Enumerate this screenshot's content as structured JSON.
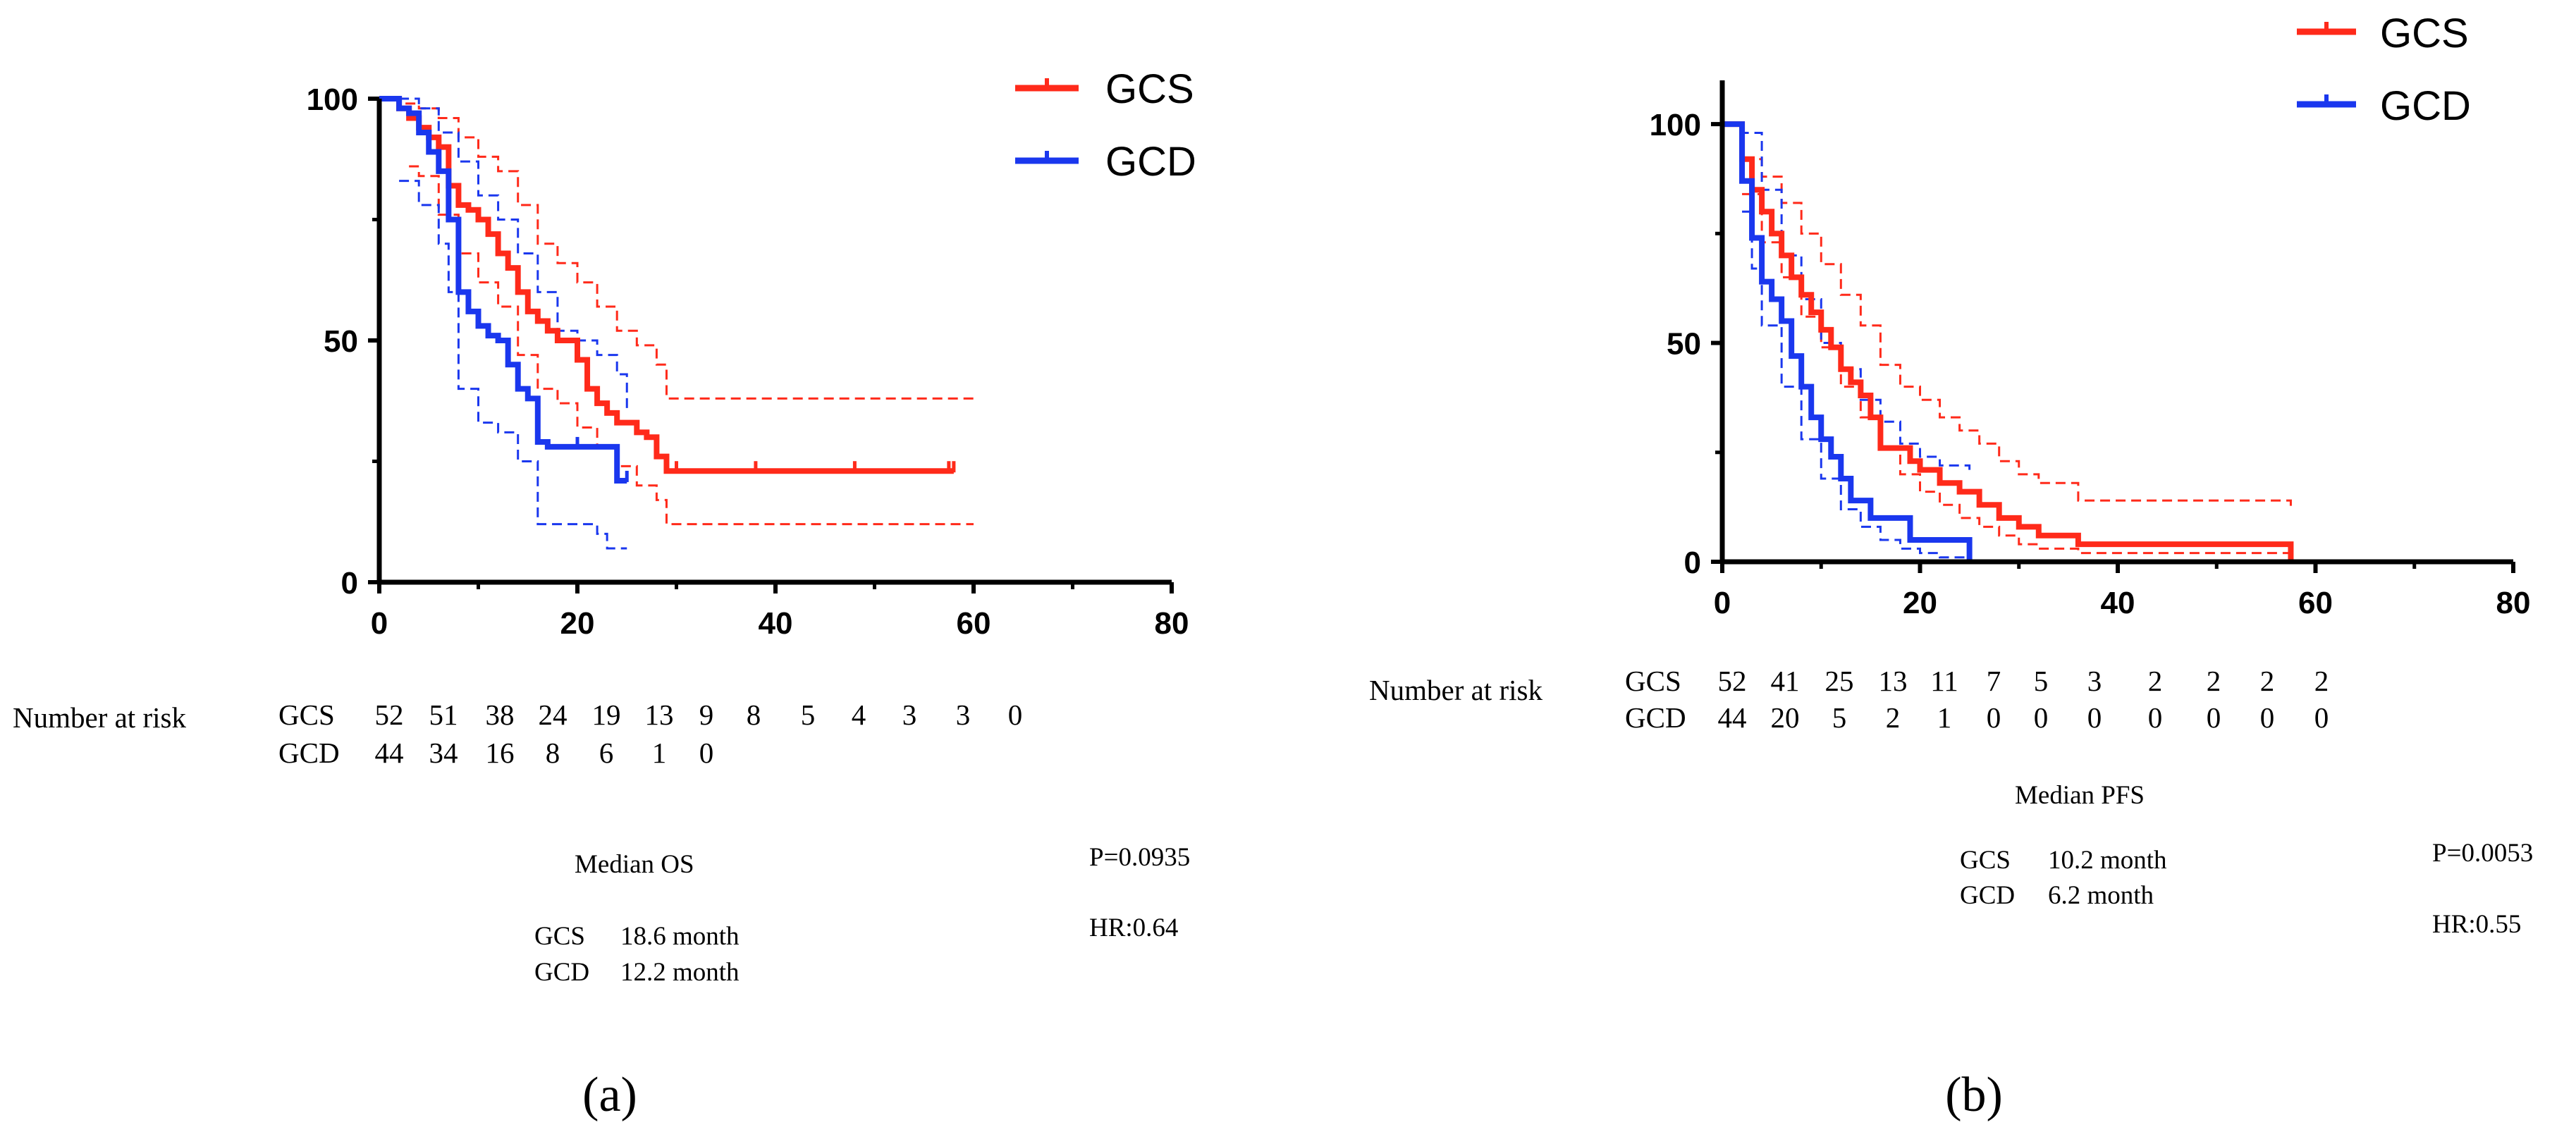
{
  "colors": {
    "GCS": "#ff2a1a",
    "GCD": "#1a37ee",
    "axis": "#000000"
  },
  "chart_data": [
    {
      "type": "line",
      "title": "",
      "xlabel": "",
      "ylabel": "",
      "xlim": [
        0,
        80
      ],
      "ylim": [
        0,
        100
      ],
      "x_ticks": [
        "0",
        "20",
        "40",
        "60",
        "80"
      ],
      "y_ticks": [
        "0",
        "50",
        "100"
      ],
      "legend": {
        "position": "top-right",
        "entries": [
          "GCS",
          "GCD"
        ]
      },
      "series": [
        {
          "name": "GCS",
          "style": "solid",
          "x": [
            0,
            1,
            2,
            3,
            4,
            5,
            6,
            7,
            8,
            9,
            10,
            11,
            12,
            13,
            14,
            15,
            16,
            17,
            18,
            19,
            20,
            21,
            22,
            23,
            24,
            25,
            26,
            27,
            28,
            29,
            30,
            32,
            38,
            48,
            57.5,
            58
          ],
          "y": [
            100,
            100,
            98,
            96,
            94,
            92,
            90,
            82,
            78,
            77,
            75,
            72,
            68,
            65,
            60,
            56,
            54,
            52,
            50,
            50,
            46,
            40,
            37,
            35,
            33,
            33,
            31,
            30,
            26,
            23,
            23,
            23,
            23,
            23,
            23,
            23
          ],
          "censor_x": [
            30,
            38,
            48,
            57.5,
            58
          ]
        },
        {
          "name": "GCD",
          "style": "solid",
          "x": [
            0,
            1,
            2,
            3,
            4,
            5,
            6,
            7,
            8,
            9,
            10,
            11,
            12,
            13,
            14,
            15,
            16,
            17,
            18,
            19,
            20,
            21,
            22,
            23,
            24,
            25
          ],
          "y": [
            100,
            100,
            98,
            97,
            93,
            89,
            85,
            75,
            60,
            56,
            53,
            51,
            50,
            45,
            40,
            38,
            29,
            28,
            28,
            28,
            28,
            28,
            28,
            28,
            21,
            21
          ],
          "censor_x": [
            20,
            24,
            25
          ]
        },
        {
          "name": "",
          "role": "GCS",
          "style": "dashed",
          "x": [
            0,
            2,
            4,
            6,
            8,
            10,
            12,
            14,
            16,
            18,
            20,
            22,
            24,
            26,
            28,
            29,
            60
          ],
          "y": [
            100,
            99,
            98,
            96,
            92,
            88,
            85,
            78,
            70,
            66,
            62,
            57,
            52,
            49,
            45,
            38,
            38
          ]
        },
        {
          "name": "",
          "role": "GCS",
          "style": "dashed",
          "x": [
            3,
            4,
            6,
            8,
            10,
            12,
            14,
            16,
            18,
            20,
            22,
            24,
            26,
            28,
            29,
            60
          ],
          "y": [
            86,
            84,
            76,
            68,
            62,
            57,
            47,
            40,
            37,
            32,
            28,
            24,
            20,
            17,
            12,
            12
          ]
        },
        {
          "name": "",
          "role": "GCD",
          "style": "dashed",
          "x": [
            2,
            4,
            6,
            8,
            10,
            12,
            14,
            16,
            18,
            20,
            22,
            24,
            25
          ],
          "y": [
            100,
            98,
            93,
            87,
            80,
            75,
            68,
            60,
            52,
            50,
            47,
            43,
            35
          ]
        },
        {
          "name": "",
          "role": "GCD",
          "style": "dashed",
          "x": [
            2,
            4,
            6,
            7,
            8,
            10,
            12,
            14,
            16,
            18,
            20,
            22,
            23,
            25
          ],
          "y": [
            83,
            78,
            70,
            60,
            40,
            33,
            31,
            25,
            12,
            12,
            12,
            10,
            7,
            7
          ]
        }
      ],
      "number_at_risk": {
        "label": "Number at risk",
        "rows": [
          {
            "name": "GCS",
            "values": [
              "52",
              "51",
              "38",
              "24",
              "19",
              "13",
              "9",
              "8",
              "5",
              "4",
              "3",
              "3",
              "0"
            ]
          },
          {
            "name": "GCD",
            "values": [
              "44",
              "34",
              "16",
              "8",
              "6",
              "1",
              "0"
            ]
          }
        ]
      },
      "median": {
        "title": "Median OS",
        "rows": [
          {
            "name": "GCS",
            "value": "18.6 month"
          },
          {
            "name": "GCD",
            "value": "12.2 month"
          }
        ]
      },
      "p_value": "P=0.0935",
      "hr": "HR:0.64",
      "panel_label": "(a)"
    },
    {
      "type": "line",
      "title": "",
      "xlabel": "",
      "ylabel": "",
      "xlim": [
        0,
        80
      ],
      "ylim": [
        0,
        110
      ],
      "x_ticks": [
        "0",
        "20",
        "40",
        "60",
        "80"
      ],
      "y_ticks": [
        "0",
        "50",
        "100"
      ],
      "legend": {
        "position": "top-right",
        "entries": [
          "GCS",
          "GCD"
        ]
      },
      "series": [
        {
          "name": "GCS",
          "style": "solid",
          "x": [
            0,
            1,
            2,
            3,
            4,
            5,
            6,
            7,
            8,
            9,
            10,
            11,
            12,
            13,
            14,
            15,
            16,
            18,
            19,
            20,
            22,
            24,
            26,
            28,
            30,
            32,
            36,
            40,
            50,
            57,
            57.5
          ],
          "y": [
            100,
            100,
            92,
            85,
            80,
            75,
            70,
            65,
            61,
            57,
            53,
            49,
            44,
            41,
            38,
            33,
            26,
            26,
            23,
            21,
            18,
            16,
            13,
            10,
            8,
            6,
            4,
            4,
            4,
            4,
            0
          ]
        },
        {
          "name": "GCD",
          "style": "solid",
          "x": [
            0,
            1,
            2,
            3,
            4,
            5,
            6,
            7,
            8,
            9,
            10,
            11,
            12,
            13,
            15,
            19,
            25
          ],
          "y": [
            100,
            100,
            87,
            74,
            64,
            60,
            55,
            47,
            40,
            33,
            28,
            24,
            19,
            14,
            10,
            5,
            0
          ]
        },
        {
          "name": "",
          "role": "GCS",
          "style": "dashed",
          "x": [
            1,
            2,
            4,
            6,
            8,
            10,
            12,
            14,
            16,
            18,
            20,
            22,
            24,
            26,
            28,
            30,
            32,
            36,
            57.5
          ],
          "y": [
            100,
            92,
            88,
            82,
            75,
            68,
            61,
            54,
            45,
            40,
            37,
            33,
            30,
            27,
            23,
            20,
            18,
            14,
            12
          ]
        },
        {
          "name": "",
          "role": "GCS",
          "style": "dashed",
          "x": [
            2,
            4,
            6,
            8,
            10,
            12,
            14,
            16,
            18,
            20,
            22,
            24,
            26,
            28,
            30,
            32,
            36,
            57.5
          ],
          "y": [
            84,
            73,
            65,
            56,
            49,
            40,
            33,
            26,
            20,
            16,
            13,
            10,
            8,
            6,
            4,
            3,
            2,
            0
          ]
        },
        {
          "name": "",
          "role": "GCD",
          "style": "dashed",
          "x": [
            1,
            2,
            4,
            6,
            8,
            10,
            12,
            14,
            16,
            18,
            20,
            22,
            25
          ],
          "y": [
            100,
            98,
            85,
            70,
            60,
            50,
            44,
            37,
            32,
            27,
            24,
            22,
            21
          ]
        },
        {
          "name": "",
          "role": "GCD",
          "style": "dashed",
          "x": [
            2,
            3,
            4,
            6,
            8,
            10,
            12,
            14,
            16,
            18,
            20,
            22,
            25
          ],
          "y": [
            80,
            67,
            54,
            40,
            28,
            19,
            12,
            8,
            5,
            3,
            2,
            1,
            0
          ]
        }
      ],
      "number_at_risk": {
        "label": "Number at risk",
        "rows": [
          {
            "name": "GCS",
            "values": [
              "52",
              "41",
              "25",
              "13",
              "11",
              "7",
              "5",
              "3",
              "2",
              "2",
              "2",
              "2"
            ]
          },
          {
            "name": "GCD",
            "values": [
              "44",
              "20",
              "5",
              "2",
              "1",
              "0",
              "0",
              "0",
              "0",
              "0",
              "0",
              "0"
            ]
          }
        ]
      },
      "median": {
        "title": "Median PFS",
        "rows": [
          {
            "name": "GCS",
            "value": "10.2 month"
          },
          {
            "name": "GCD",
            "value": "6.2 month"
          }
        ]
      },
      "p_value": "P=0.0053",
      "hr": "HR:0.55",
      "panel_label": "(b)"
    }
  ]
}
